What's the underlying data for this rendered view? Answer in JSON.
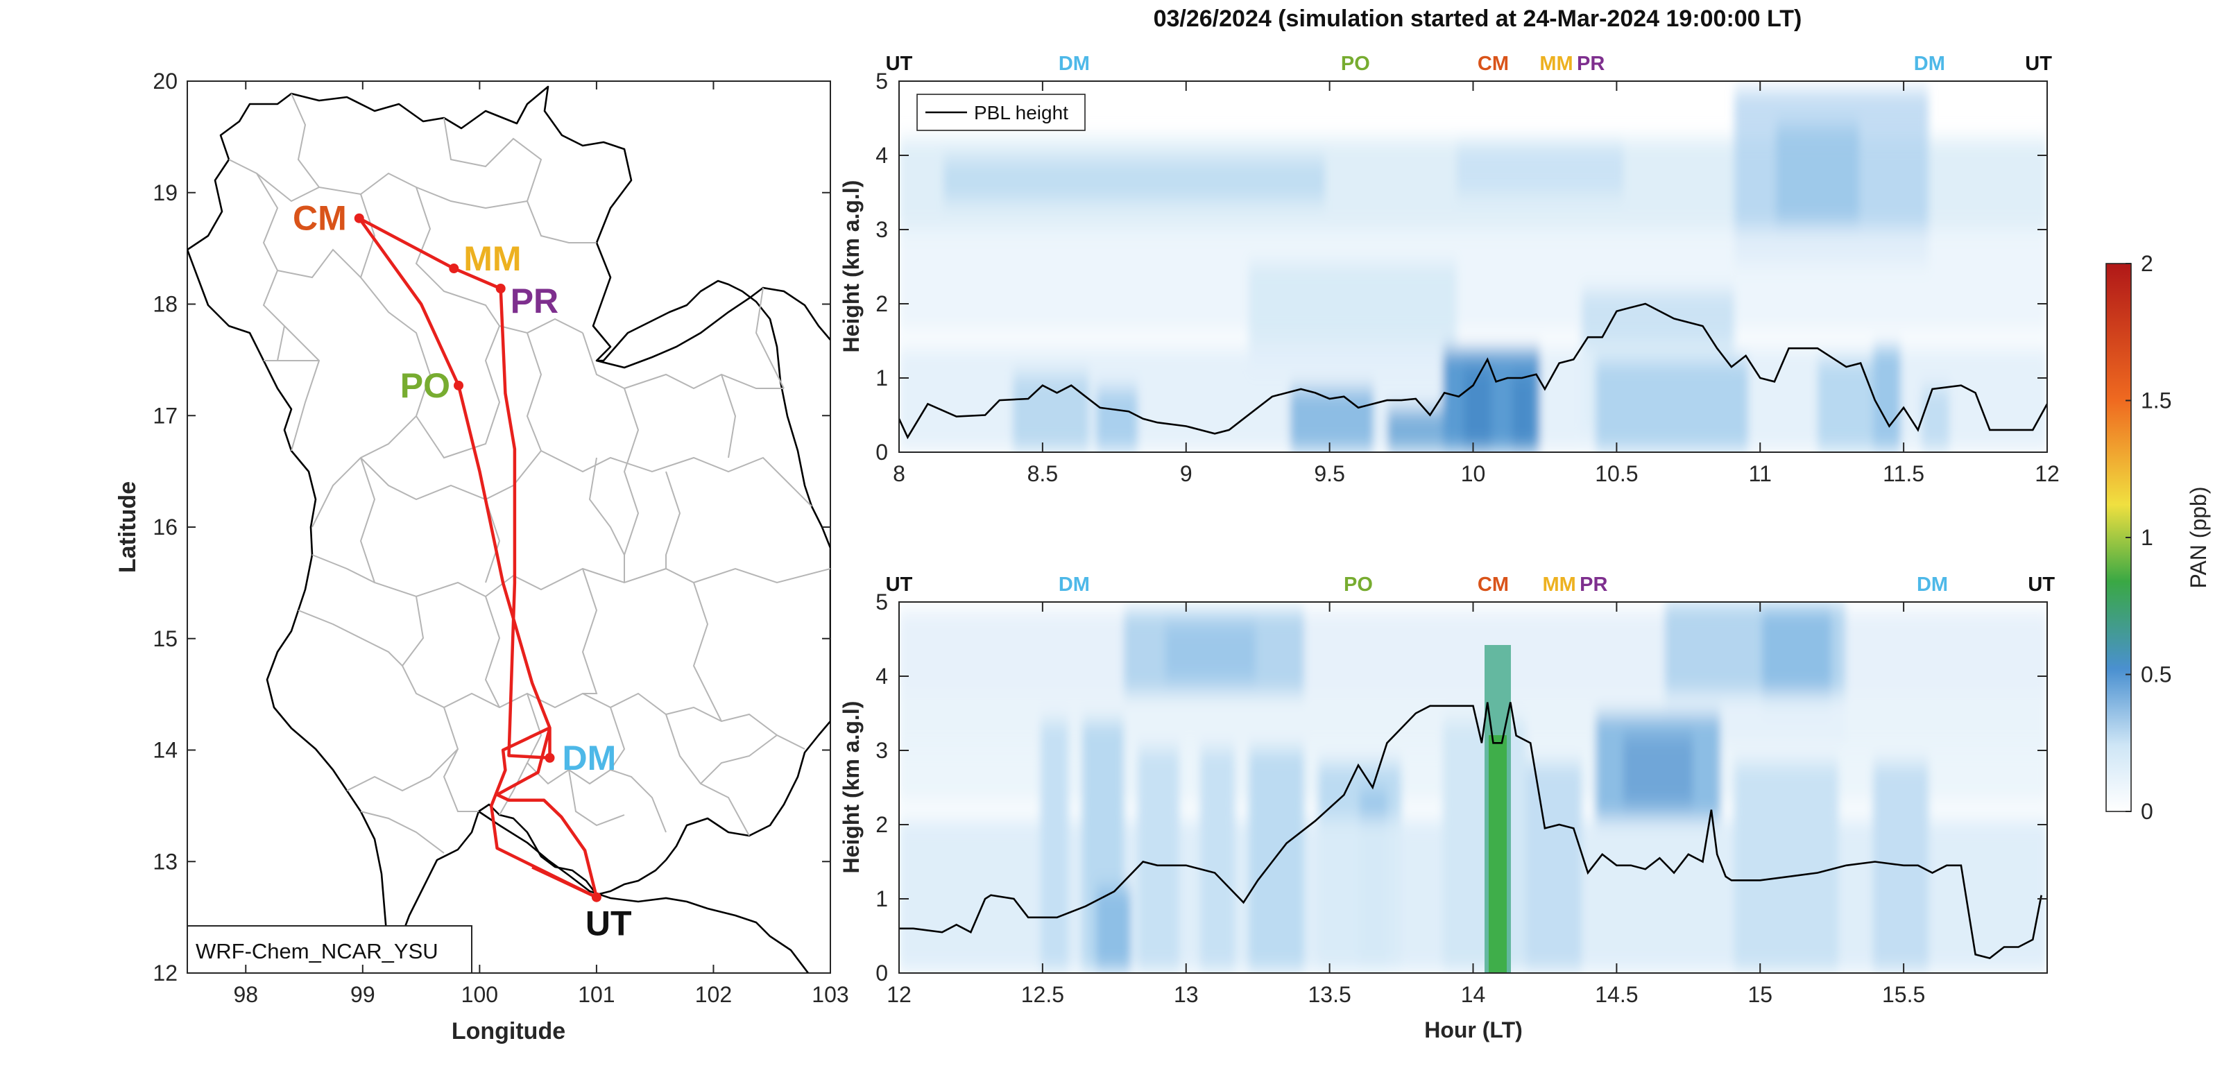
{
  "title": "03/26/2024 (simulation started at 24-Mar-2024 19:00:00 LT)",
  "colors": {
    "route": "#e8201c",
    "UT": "#111111",
    "DM": "#4db8e8",
    "PO": "#77ac30",
    "CM": "#d95319",
    "MM": "#edb120",
    "PR": "#7e2f8e",
    "pbl_line": "#000000",
    "border": "#000000",
    "province": "#b5b5b5"
  },
  "chart_data": [
    {
      "type": "map",
      "xlabel": "Longitude",
      "ylabel": "Latitude",
      "xlim": [
        97.5,
        103
      ],
      "ylim": [
        12,
        20
      ],
      "xticks": [
        98,
        99,
        100,
        101,
        102,
        103
      ],
      "yticks": [
        12,
        13,
        14,
        15,
        16,
        17,
        18,
        19,
        20
      ],
      "model_label": "WRF-Chem_NCAR_YSU",
      "sites": [
        {
          "name": "CM",
          "lon": 98.97,
          "lat": 18.77
        },
        {
          "name": "MM",
          "lon": 99.78,
          "lat": 18.32
        },
        {
          "name": "PR",
          "lon": 100.18,
          "lat": 18.14
        },
        {
          "name": "PO",
          "lon": 99.82,
          "lat": 17.27
        },
        {
          "name": "DM",
          "lon": 100.6,
          "lat": 13.93
        },
        {
          "name": "UT",
          "lon": 101.0,
          "lat": 12.68
        }
      ],
      "route_lonlat": [
        [
          101.0,
          12.68
        ],
        [
          100.15,
          13.12
        ],
        [
          100.1,
          13.5
        ],
        [
          100.22,
          13.82
        ],
        [
          100.2,
          14.0
        ],
        [
          100.6,
          14.2
        ],
        [
          100.6,
          13.93
        ],
        [
          100.25,
          13.95
        ],
        [
          100.3,
          15.5
        ],
        [
          100.3,
          16.7
        ],
        [
          100.22,
          17.2
        ],
        [
          100.18,
          18.14
        ],
        [
          99.78,
          18.32
        ],
        [
          98.97,
          18.77
        ],
        [
          99.5,
          18.0
        ],
        [
          99.82,
          17.27
        ],
        [
          100.0,
          16.5
        ],
        [
          100.2,
          15.5
        ],
        [
          100.45,
          14.6
        ],
        [
          100.6,
          14.2
        ],
        [
          100.5,
          13.8
        ],
        [
          100.15,
          13.6
        ],
        [
          100.25,
          13.55
        ],
        [
          100.55,
          13.55
        ],
        [
          100.7,
          13.4
        ],
        [
          100.9,
          13.1
        ],
        [
          101.0,
          12.68
        ],
        [
          100.45,
          12.95
        ]
      ]
    },
    {
      "type": "heatmap",
      "panel": "top",
      "ylabel": "Height (km a.g.l)",
      "xlabel": "",
      "xlim": [
        8,
        12
      ],
      "ylim": [
        0,
        5
      ],
      "xticks": [
        8,
        8.5,
        9,
        9.5,
        10,
        10.5,
        11,
        11.5,
        12
      ],
      "yticks": [
        0,
        1,
        2,
        3,
        4,
        5
      ],
      "legend": {
        "entries": [
          "PBL height"
        ],
        "placement": "top-left"
      },
      "site_markers": [
        {
          "label": "UT",
          "x": 8.0
        },
        {
          "label": "DM",
          "x": 8.61
        },
        {
          "label": "PO",
          "x": 9.59
        },
        {
          "label": "CM",
          "x": 10.07
        },
        {
          "label": "MM",
          "x": 10.29
        },
        {
          "label": "PR",
          "x": 10.41
        },
        {
          "label": "DM",
          "x": 11.59
        },
        {
          "label": "UT",
          "x": 11.97
        }
      ],
      "pbl_height": {
        "x": [
          8.0,
          8.03,
          8.1,
          8.2,
          8.3,
          8.35,
          8.45,
          8.5,
          8.55,
          8.6,
          8.65,
          8.7,
          8.8,
          8.85,
          8.9,
          9.0,
          9.05,
          9.1,
          9.15,
          9.2,
          9.3,
          9.4,
          9.45,
          9.5,
          9.55,
          9.6,
          9.7,
          9.75,
          9.8,
          9.85,
          9.9,
          9.95,
          10.0,
          10.05,
          10.08,
          10.12,
          10.17,
          10.22,
          10.25,
          10.3,
          10.35,
          10.4,
          10.45,
          10.5,
          10.55,
          10.6,
          10.7,
          10.8,
          10.85,
          10.9,
          10.95,
          11.0,
          11.05,
          11.1,
          11.2,
          11.3,
          11.35,
          11.4,
          11.45,
          11.5,
          11.55,
          11.6,
          11.7,
          11.75,
          11.8,
          11.9,
          11.95,
          12.0
        ],
        "y": [
          0.45,
          0.2,
          0.65,
          0.48,
          0.5,
          0.7,
          0.72,
          0.9,
          0.8,
          0.9,
          0.75,
          0.6,
          0.55,
          0.45,
          0.4,
          0.35,
          0.3,
          0.25,
          0.3,
          0.45,
          0.75,
          0.85,
          0.8,
          0.72,
          0.75,
          0.6,
          0.7,
          0.7,
          0.72,
          0.5,
          0.8,
          0.75,
          0.9,
          1.25,
          0.95,
          1.0,
          1.0,
          1.05,
          0.85,
          1.2,
          1.25,
          1.55,
          1.55,
          1.9,
          1.95,
          2.0,
          1.8,
          1.7,
          1.4,
          1.15,
          1.3,
          1.0,
          0.95,
          1.4,
          1.4,
          1.15,
          1.2,
          0.7,
          0.35,
          0.6,
          0.3,
          0.85,
          0.9,
          0.8,
          0.3,
          0.3,
          0.3,
          0.65
        ]
      }
    },
    {
      "type": "heatmap",
      "panel": "bottom",
      "ylabel": "Height (km a.g.l)",
      "xlabel": "Hour (LT)",
      "xlim": [
        12,
        16
      ],
      "ylim": [
        0,
        5
      ],
      "xticks": [
        12,
        12.5,
        13,
        13.5,
        14,
        14.5,
        15,
        15.5
      ],
      "yticks": [
        0,
        1,
        2,
        3,
        4,
        5
      ],
      "site_markers": [
        {
          "label": "UT",
          "x": 12.0
        },
        {
          "label": "DM",
          "x": 12.61
        },
        {
          "label": "PO",
          "x": 13.6
        },
        {
          "label": "CM",
          "x": 14.07
        },
        {
          "label": "MM",
          "x": 14.3
        },
        {
          "label": "PR",
          "x": 14.42
        },
        {
          "label": "DM",
          "x": 15.6
        },
        {
          "label": "UT",
          "x": 15.98
        }
      ],
      "pbl_height": {
        "x": [
          12.0,
          12.05,
          12.15,
          12.2,
          12.25,
          12.3,
          12.32,
          12.4,
          12.45,
          12.55,
          12.65,
          12.75,
          12.85,
          12.9,
          13.0,
          13.1,
          13.2,
          13.25,
          13.3,
          13.35,
          13.45,
          13.55,
          13.6,
          13.65,
          13.7,
          13.8,
          13.85,
          13.9,
          13.95,
          14.0,
          14.03,
          14.05,
          14.07,
          14.1,
          14.13,
          14.15,
          14.2,
          14.25,
          14.3,
          14.35,
          14.4,
          14.45,
          14.5,
          14.55,
          14.6,
          14.65,
          14.7,
          14.75,
          14.8,
          14.83,
          14.85,
          14.88,
          14.9,
          15.0,
          15.1,
          15.2,
          15.3,
          15.4,
          15.5,
          15.55,
          15.6,
          15.65,
          15.7,
          15.75,
          15.8,
          15.85,
          15.9,
          15.95,
          15.98
        ],
        "y": [
          0.6,
          0.6,
          0.55,
          0.65,
          0.55,
          1.0,
          1.05,
          1.0,
          0.75,
          0.75,
          0.9,
          1.1,
          1.5,
          1.45,
          1.45,
          1.35,
          0.95,
          1.25,
          1.5,
          1.75,
          2.05,
          2.4,
          2.8,
          2.5,
          3.1,
          3.5,
          3.6,
          3.6,
          3.6,
          3.6,
          3.1,
          3.65,
          3.1,
          3.1,
          3.65,
          3.2,
          3.1,
          1.95,
          2.0,
          1.95,
          1.35,
          1.6,
          1.45,
          1.45,
          1.4,
          1.55,
          1.35,
          1.6,
          1.5,
          2.2,
          1.6,
          1.3,
          1.25,
          1.25,
          1.3,
          1.35,
          1.45,
          1.5,
          1.45,
          1.45,
          1.35,
          1.45,
          1.45,
          0.25,
          0.2,
          0.35,
          0.35,
          0.45,
          1.05
        ]
      }
    }
  ],
  "colorbar": {
    "label": "PAN (ppb)",
    "ticks": [
      0,
      0.5,
      1,
      1.5,
      2
    ],
    "stops": [
      "#ffffff",
      "#cfe6f6",
      "#4a90d0",
      "#3aa844",
      "#f0e040",
      "#ef6a20",
      "#b01818"
    ]
  }
}
